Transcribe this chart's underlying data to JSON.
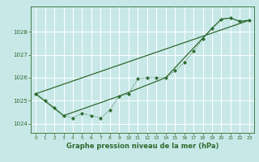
{
  "title": "Graphe pression niveau de la mer (hPa)",
  "bg_color": "#c8e8e8",
  "grid_color": "#ffffff",
  "line_color": "#2d6a2d",
  "xlim": [
    -0.5,
    23.5
  ],
  "ylim": [
    1023.6,
    1029.1
  ],
  "yticks": [
    1024,
    1025,
    1026,
    1027,
    1028
  ],
  "xticks": [
    0,
    1,
    2,
    3,
    4,
    5,
    6,
    7,
    8,
    9,
    10,
    11,
    12,
    13,
    14,
    15,
    16,
    17,
    18,
    19,
    20,
    21,
    22,
    23
  ],
  "series1_x": [
    0,
    1,
    2,
    3,
    4,
    5,
    6,
    7,
    8,
    9,
    10,
    11,
    12,
    13,
    14,
    15,
    16,
    17,
    18,
    19,
    20,
    21,
    22,
    23
  ],
  "series1_y": [
    1025.3,
    1025.0,
    1024.7,
    1024.35,
    1024.25,
    1024.45,
    1024.35,
    1024.25,
    1024.6,
    1025.2,
    1025.3,
    1025.95,
    1026.0,
    1026.0,
    1026.0,
    1026.3,
    1026.65,
    1027.15,
    1027.7,
    1028.15,
    1028.55,
    1028.6,
    1028.45,
    1028.5
  ],
  "series2_x": [
    0,
    23
  ],
  "series2_y": [
    1025.3,
    1028.5
  ],
  "series3_x": [
    0,
    3,
    9,
    14,
    19,
    20,
    21,
    22,
    23
  ],
  "series3_y": [
    1025.3,
    1024.35,
    1025.2,
    1026.0,
    1028.15,
    1028.55,
    1028.6,
    1028.45,
    1028.5
  ],
  "ylabel_fontsize": 5.5,
  "tick_fontsize": 5,
  "xlabel_fontsize": 6
}
